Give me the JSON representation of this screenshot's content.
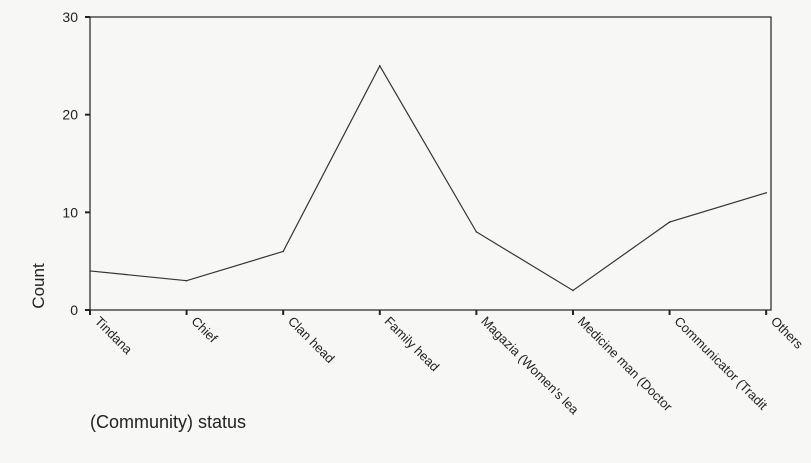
{
  "chart_data": {
    "type": "line",
    "title": "",
    "xlabel": "(Community) status",
    "ylabel": "Count",
    "categories": [
      "Tindana",
      "Chief",
      "Clan head",
      "Family head",
      "Magazia (Women's lea",
      "Medicine man (Doctor",
      "Communicator (Tradit",
      "Others"
    ],
    "series": [
      {
        "values": [
          4,
          3,
          6,
          25,
          8,
          2,
          9,
          12
        ]
      }
    ],
    "ylim": [
      0,
      30
    ],
    "yticks": [
      0,
      10,
      20,
      30
    ],
    "grid": false,
    "legend": "none",
    "colors": {
      "line": "#333333",
      "axis": "#222222",
      "text": "#222222"
    }
  }
}
